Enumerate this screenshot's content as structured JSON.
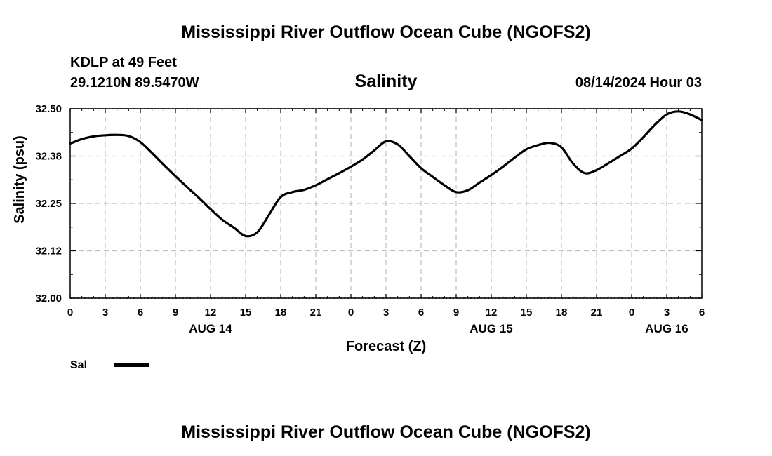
{
  "chart_data": {
    "type": "line",
    "title": "Mississippi River Outflow Ocean Cube (NGOFS2)",
    "footer_title": "Mississippi River Outflow Ocean Cube (NGOFS2)",
    "subtitle": "Salinity",
    "station": "KDLP at 49 Feet",
    "coordinates": "29.1210N  89.5470W",
    "run": "08/14/2024 Hour 03",
    "xlabel": "Forecast (Z)",
    "ylabel": "Salinity (psu)",
    "xlim": [
      0,
      54
    ],
    "ylim": [
      32.0,
      32.5
    ],
    "x_tick_values": [
      0,
      3,
      6,
      9,
      12,
      15,
      18,
      21,
      24,
      27,
      30,
      33,
      36,
      39,
      42,
      45,
      48,
      51,
      54
    ],
    "x_tick_labels": [
      "0",
      "3",
      "6",
      "9",
      "12",
      "15",
      "18",
      "21",
      "0",
      "3",
      "6",
      "9",
      "12",
      "15",
      "18",
      "21",
      "0",
      "3",
      "6"
    ],
    "y_tick_values": [
      32.0,
      32.125,
      32.25,
      32.375,
      32.5
    ],
    "y_tick_labels": [
      "32.00",
      "32.12",
      "32.25",
      "32.38",
      "32.50"
    ],
    "day_labels": [
      {
        "label": "AUG 14",
        "x": 12
      },
      {
        "label": "AUG 15",
        "x": 36
      },
      {
        "label": "AUG 16",
        "x": 51
      }
    ],
    "grid": true,
    "legend": [
      {
        "name": "Sal",
        "color": "#000000"
      }
    ],
    "series": [
      {
        "name": "Sal",
        "color": "#000000",
        "x": [
          0,
          1,
          2,
          3,
          4,
          5,
          6,
          7,
          8,
          9,
          10,
          11,
          12,
          13,
          14,
          15,
          16,
          17,
          18,
          19,
          20,
          21,
          22,
          23,
          24,
          25,
          26,
          27,
          28,
          29,
          30,
          31,
          32,
          33,
          34,
          35,
          36,
          37,
          38,
          39,
          40,
          41,
          42,
          43,
          44,
          45,
          46,
          47,
          48,
          49,
          50,
          51,
          52,
          53,
          54
        ],
        "values": [
          32.408,
          32.42,
          32.427,
          32.43,
          32.431,
          32.428,
          32.412,
          32.383,
          32.352,
          32.322,
          32.293,
          32.265,
          32.235,
          32.207,
          32.186,
          32.164,
          32.174,
          32.22,
          32.267,
          32.28,
          32.286,
          32.298,
          32.314,
          32.33,
          32.347,
          32.366,
          32.39,
          32.414,
          32.406,
          32.375,
          32.343,
          32.32,
          32.298,
          32.28,
          32.285,
          32.305,
          32.325,
          32.347,
          32.371,
          32.393,
          32.404,
          32.41,
          32.398,
          32.355,
          32.33,
          32.338,
          32.356,
          32.375,
          32.395,
          32.425,
          32.458,
          32.485,
          32.493,
          32.485,
          32.47
        ]
      }
    ]
  }
}
